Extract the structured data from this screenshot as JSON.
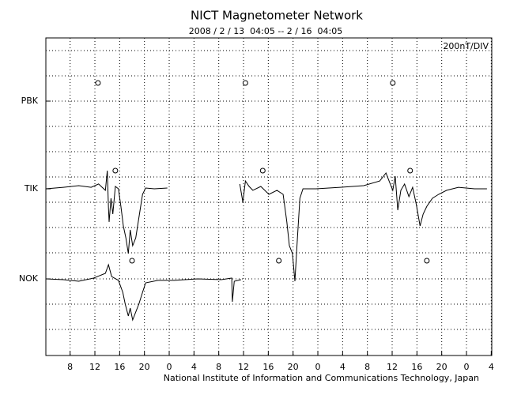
{
  "chart_data": {
    "type": "line",
    "title": "NICT Magnetometer Network",
    "subtitle": "2008 / 2 / 13  04:05 -- 2 / 16  04:05",
    "scale_label": "200nT/DIV",
    "credit": "National Institute of Information and Communications Technology, Japan",
    "xlim": [
      4.083,
      76.083
    ],
    "xticks": [
      8,
      12,
      16,
      20,
      {
        "value": 24,
        "label": "0"
      },
      {
        "value": 28,
        "label": "4"
      },
      {
        "value": 32,
        "label": "8"
      },
      {
        "value": 36,
        "label": "12"
      },
      {
        "value": 40,
        "label": "16"
      },
      {
        "value": 44,
        "label": "20"
      },
      {
        "value": 48,
        "label": "0"
      },
      {
        "value": 52,
        "label": "4"
      },
      {
        "value": 56,
        "label": "8"
      },
      {
        "value": 60,
        "label": "12"
      },
      {
        "value": 64,
        "label": "16"
      },
      {
        "value": 68,
        "label": "20"
      },
      {
        "value": 72,
        "label": "0"
      },
      {
        "value": 76,
        "label": "4"
      }
    ],
    "grid": true,
    "series": [
      {
        "name": "PBK",
        "color": "#000000",
        "markers": [
          12.5,
          36.3,
          60.1
        ],
        "x": [],
        "values": []
      },
      {
        "name": "TIK",
        "color": "#000000",
        "markers": [
          15.3,
          39.1,
          62.9
        ],
        "x": [
          4.1,
          6.9,
          9.4,
          11.4,
          12.6,
          13.7,
          14.0,
          14.2,
          14.3,
          14.6,
          14.9,
          15.3,
          15.8,
          16.2,
          16.6,
          17.0,
          17.4,
          17.7,
          18.1,
          18.6,
          19.1,
          19.7,
          20.2,
          21.6,
          23.7,
          null,
          35.4,
          35.9,
          36.3,
          36.9,
          37.5,
          38.8,
          40.1,
          41.4,
          42.4,
          43.0,
          43.4,
          43.9,
          44.3,
          44.7,
          45.1,
          45.6,
          47.7,
          51.6,
          55.4,
          58.0,
          59.0,
          59.5,
          60.1,
          60.5,
          60.9,
          61.4,
          62.0,
          62.7,
          63.3,
          63.9,
          64.5,
          65.0,
          65.6,
          66.5,
          67.5,
          68.8,
          70.7,
          73.3,
          75.3
        ],
        "values": [
          0,
          12,
          25,
          12,
          38,
          -12,
          144,
          -150,
          -262,
          -75,
          -200,
          19,
          0,
          -138,
          -294,
          -388,
          -512,
          -325,
          -450,
          -388,
          -231,
          -44,
          6,
          0,
          6,
          null,
          38,
          -106,
          62,
          19,
          -12,
          19,
          -44,
          -12,
          -44,
          -262,
          -450,
          -512,
          -731,
          -388,
          -75,
          0,
          0,
          12,
          25,
          62,
          125,
          62,
          -12,
          100,
          -169,
          -12,
          38,
          -62,
          12,
          -125,
          -294,
          -200,
          -138,
          -75,
          -44,
          -12,
          12,
          0,
          0
        ]
      },
      {
        "name": "NOK",
        "color": "#000000",
        "markers": [
          18.0,
          41.7,
          65.6
        ],
        "x": [
          4.1,
          6.9,
          9.4,
          11.8,
          13.7,
          14.2,
          14.7,
          15.8,
          16.5,
          16.9,
          17.4,
          17.7,
          18.1,
          18.6,
          19.1,
          19.7,
          20.2,
          22.2,
          24.8,
          28.6,
          32.4,
          34.1,
          34.2,
          34.5,
          35.6
        ],
        "values": [
          0,
          -6,
          -19,
          6,
          44,
          112,
          19,
          -12,
          -106,
          -200,
          -294,
          -231,
          -325,
          -262,
          -200,
          -106,
          -31,
          -12,
          -12,
          0,
          -6,
          6,
          -181,
          -19,
          -6
        ]
      }
    ]
  }
}
